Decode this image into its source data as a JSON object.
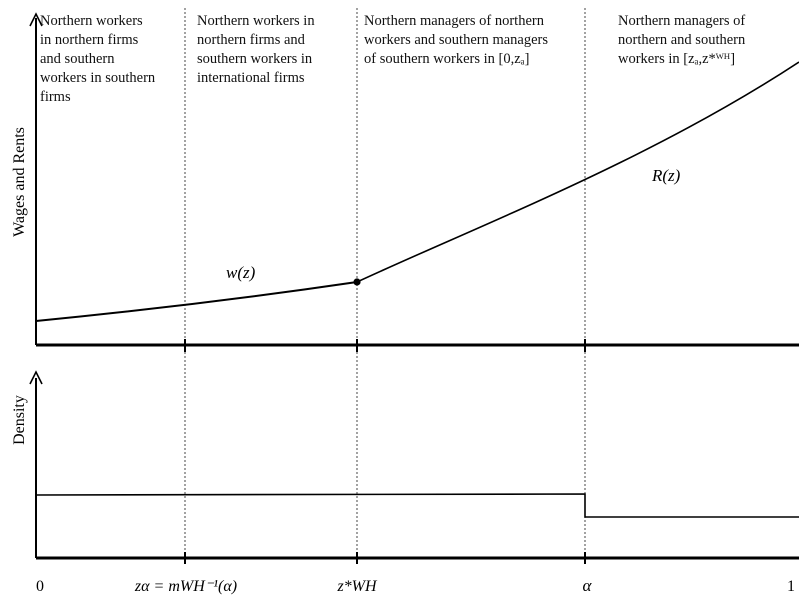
{
  "regions": [
    {
      "lines": [
        "Northern workers",
        "in northern firms",
        "and southern",
        "workers in southern",
        "firms"
      ]
    },
    {
      "lines": [
        "Northern workers in",
        "northern firms and",
        "southern workers in",
        "international firms"
      ]
    },
    {
      "lines": [
        "Northern managers of northern",
        "workers and southern managers",
        "of southern workers in [0,zₐ]"
      ]
    },
    {
      "lines": [
        "Northern managers of",
        "northern and southern",
        "workers in [zₐ,z*ᵂᴴ]"
      ]
    }
  ],
  "top_panel": {
    "ylabel": "Wages and Rents",
    "curve_w_label": "w(z)",
    "curve_r_label": "R(z)"
  },
  "bottom_panel": {
    "ylabel": "Density"
  },
  "x_axis": {
    "tick_0": "0",
    "tick_za": "zα = mWH⁻¹(α)",
    "tick_zstar": "z*WH",
    "tick_alpha": "α",
    "tick_1": "1"
  }
}
